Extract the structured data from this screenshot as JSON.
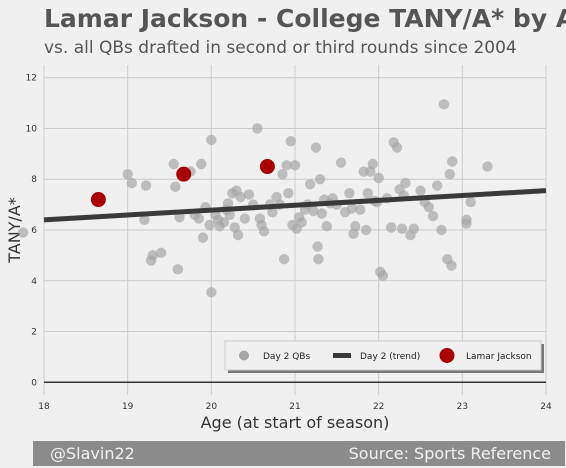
{
  "chart_data": {
    "type": "scatter",
    "title": "Lamar Jackson - College TANY/A* by Age",
    "subtitle": "vs. all QBs drafted in second or third rounds since 2004",
    "xlabel": "Age (at start of season)",
    "ylabel": "TANY/A*",
    "xlim": [
      18,
      24
    ],
    "ylim": [
      -0.5,
      12.5
    ],
    "x_ticks": [
      "18",
      "19",
      "20",
      "21",
      "22",
      "23",
      "24"
    ],
    "y_ticks": [
      "0",
      "2",
      "4",
      "6",
      "8",
      "10",
      "12"
    ],
    "grid": true,
    "legend_position": "bottom-right",
    "legend": [
      "Day 2 QBs",
      "Day 2 (trend)",
      "Lamar Jackson"
    ],
    "colors": {
      "day2": "#a6a6a6",
      "trend": "#3a3a3a",
      "lamar": "#aa0000",
      "background": "#f0f0f0",
      "grid": "#cbcbcb",
      "title": "#555555"
    },
    "series": [
      {
        "name": "Day 2 QBs",
        "points": [
          [
            17.75,
            5.9
          ],
          [
            19.0,
            8.2
          ],
          [
            19.05,
            7.85
          ],
          [
            19.22,
            7.75
          ],
          [
            19.2,
            6.4
          ],
          [
            19.28,
            4.8
          ],
          [
            19.3,
            5.0
          ],
          [
            19.4,
            5.1
          ],
          [
            19.55,
            8.6
          ],
          [
            19.57,
            7.7
          ],
          [
            19.6,
            4.45
          ],
          [
            19.62,
            6.5
          ],
          [
            19.7,
            8.25
          ],
          [
            19.75,
            8.3
          ],
          [
            19.8,
            6.6
          ],
          [
            19.85,
            6.45
          ],
          [
            19.88,
            8.6
          ],
          [
            19.9,
            5.7
          ],
          [
            19.93,
            6.9
          ],
          [
            19.98,
            6.2
          ],
          [
            20.0,
            3.55
          ],
          [
            20.0,
            9.55
          ],
          [
            20.05,
            6.6
          ],
          [
            20.08,
            6.4
          ],
          [
            20.1,
            6.15
          ],
          [
            20.15,
            6.3
          ],
          [
            20.18,
            6.8
          ],
          [
            20.2,
            7.05
          ],
          [
            20.22,
            6.6
          ],
          [
            20.25,
            7.45
          ],
          [
            20.28,
            6.1
          ],
          [
            20.3,
            7.55
          ],
          [
            20.32,
            5.8
          ],
          [
            20.35,
            7.3
          ],
          [
            20.4,
            6.45
          ],
          [
            20.45,
            7.4
          ],
          [
            20.5,
            7.0
          ],
          [
            20.55,
            10.0
          ],
          [
            20.58,
            6.45
          ],
          [
            20.6,
            6.2
          ],
          [
            20.63,
            5.95
          ],
          [
            20.7,
            7.0
          ],
          [
            20.73,
            6.7
          ],
          [
            20.78,
            7.3
          ],
          [
            20.82,
            7.0
          ],
          [
            20.85,
            8.2
          ],
          [
            20.87,
            4.85
          ],
          [
            20.9,
            8.55
          ],
          [
            20.92,
            7.45
          ],
          [
            20.95,
            9.5
          ],
          [
            20.97,
            6.2
          ],
          [
            21.0,
            8.55
          ],
          [
            21.02,
            6.05
          ],
          [
            21.05,
            6.5
          ],
          [
            21.08,
            6.3
          ],
          [
            21.12,
            6.8
          ],
          [
            21.15,
            7.0
          ],
          [
            21.18,
            7.8
          ],
          [
            21.22,
            6.75
          ],
          [
            21.25,
            9.25
          ],
          [
            21.27,
            5.35
          ],
          [
            21.28,
            4.85
          ],
          [
            21.3,
            8.0
          ],
          [
            21.32,
            6.65
          ],
          [
            21.35,
            7.2
          ],
          [
            21.38,
            6.15
          ],
          [
            21.42,
            7.05
          ],
          [
            21.45,
            7.25
          ],
          [
            21.5,
            7.0
          ],
          [
            21.55,
            8.65
          ],
          [
            21.6,
            6.7
          ],
          [
            21.65,
            7.45
          ],
          [
            21.68,
            6.85
          ],
          [
            21.7,
            5.85
          ],
          [
            21.72,
            6.15
          ],
          [
            21.78,
            6.8
          ],
          [
            21.82,
            8.3
          ],
          [
            21.85,
            6.0
          ],
          [
            21.87,
            7.45
          ],
          [
            21.9,
            8.3
          ],
          [
            21.93,
            8.6
          ],
          [
            21.95,
            7.15
          ],
          [
            21.98,
            7.1
          ],
          [
            22.0,
            8.05
          ],
          [
            22.02,
            4.35
          ],
          [
            22.05,
            4.2
          ],
          [
            22.1,
            7.25
          ],
          [
            22.15,
            6.1
          ],
          [
            22.18,
            9.45
          ],
          [
            22.22,
            9.25
          ],
          [
            22.25,
            7.6
          ],
          [
            22.28,
            6.05
          ],
          [
            22.3,
            7.35
          ],
          [
            22.32,
            7.85
          ],
          [
            22.38,
            5.8
          ],
          [
            22.42,
            6.05
          ],
          [
            22.5,
            7.55
          ],
          [
            22.55,
            7.1
          ],
          [
            22.6,
            6.9
          ],
          [
            22.65,
            6.55
          ],
          [
            22.7,
            7.75
          ],
          [
            22.75,
            6.0
          ],
          [
            22.78,
            10.95
          ],
          [
            22.82,
            4.85
          ],
          [
            22.85,
            8.2
          ],
          [
            22.87,
            4.6
          ],
          [
            22.88,
            8.7
          ],
          [
            23.05,
            6.4
          ],
          [
            23.05,
            6.25
          ],
          [
            23.1,
            7.1
          ],
          [
            23.3,
            8.5
          ]
        ]
      },
      {
        "name": "Day 2 (trend)",
        "points": [
          [
            18.0,
            6.4
          ],
          [
            24.0,
            7.55
          ]
        ]
      },
      {
        "name": "Lamar Jackson",
        "points": [
          [
            18.65,
            7.2
          ],
          [
            19.67,
            8.2
          ],
          [
            20.67,
            8.5
          ]
        ]
      }
    ]
  },
  "footer": {
    "left": "@Slavin22",
    "right": "Source: Sports Reference"
  }
}
